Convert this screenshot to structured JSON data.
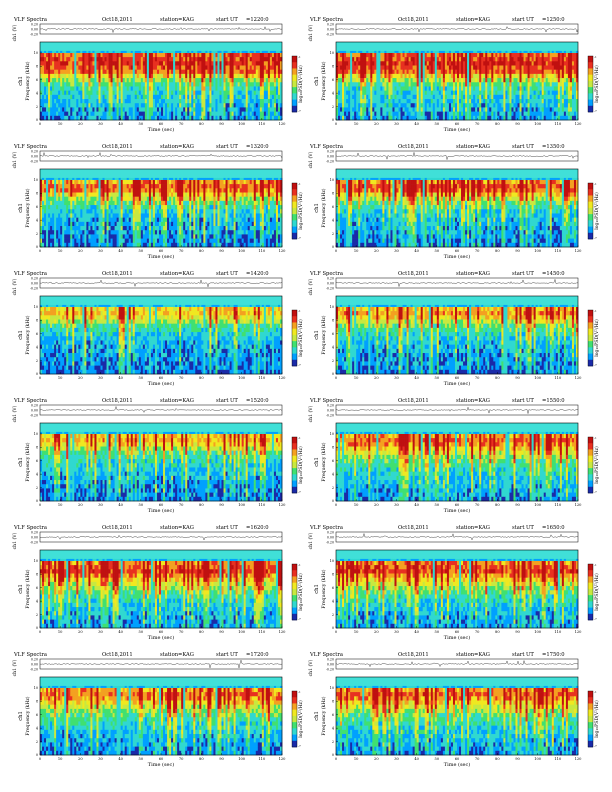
{
  "page": {
    "columns": 2
  },
  "labels": {
    "header_title": "VLF Spectra",
    "header_date": "Oct18,2011",
    "header_station": "station=KAG",
    "header_start": "start  UT",
    "x_axis_label": "Time  (sec)",
    "ch1_label": "ch1 (V)",
    "freq_label": "ch1\nFrequency  (kHz)",
    "colorbar_label": "log₁₀PSD(V²/Hz)"
  },
  "axes": {
    "time_ticks": [
      0,
      10,
      20,
      30,
      40,
      50,
      60,
      70,
      80,
      90,
      100,
      110,
      120
    ],
    "time_range": [
      0,
      120
    ],
    "freq_ticks": [
      0,
      2,
      4,
      6,
      8,
      10
    ],
    "freq_range": [
      0,
      10
    ],
    "ch1_ticks": [
      "0.20",
      "0.00",
      "-0.20"
    ],
    "ch1_range": [
      -0.2,
      0.2
    ],
    "colorbar_ticks": [
      "-1",
      "-7"
    ]
  },
  "colors": {
    "spectrogram_scale": [
      "#1a2aa8",
      "#00a0ff",
      "#30d8d0",
      "#40e070",
      "#c8e840",
      "#f0e820",
      "#f4a020",
      "#e83020",
      "#c01010"
    ],
    "background_low": "#40e0d8",
    "ink": "#000000"
  },
  "chart_data": [
    {
      "type": "heatmap",
      "title": "VLF Spectra",
      "start_ut": "=1220:0",
      "intensity": [
        0.78,
        0.82,
        0.85,
        0.8,
        0.76,
        0.6,
        0.45,
        0.35,
        0.3,
        0.28,
        0.25,
        0.22,
        0.2,
        0.18,
        0.16,
        0.15
      ],
      "activity": 0.9
    },
    {
      "type": "heatmap",
      "title": "VLF Spectra",
      "start_ut": "=1250:0",
      "intensity": [
        0.78,
        0.82,
        0.86,
        0.82,
        0.78,
        0.62,
        0.48,
        0.36,
        0.3,
        0.26,
        0.24,
        0.22,
        0.2,
        0.18,
        0.16,
        0.15
      ],
      "activity": 0.9
    },
    {
      "type": "heatmap",
      "title": "VLF Spectra",
      "start_ut": "=1320:0",
      "intensity": [
        0.7,
        0.78,
        0.74,
        0.6,
        0.48,
        0.38,
        0.3,
        0.24,
        0.22,
        0.2,
        0.18,
        0.16,
        0.15,
        0.14,
        0.13,
        0.12
      ],
      "activity": 0.7
    },
    {
      "type": "heatmap",
      "title": "VLF Spectra",
      "start_ut": "=1350:0",
      "intensity": [
        0.72,
        0.8,
        0.76,
        0.62,
        0.5,
        0.38,
        0.3,
        0.25,
        0.22,
        0.2,
        0.18,
        0.16,
        0.15,
        0.14,
        0.13,
        0.12
      ],
      "activity": 0.75
    },
    {
      "type": "heatmap",
      "title": "VLF Spectra",
      "start_ut": "=1420:0",
      "intensity": [
        0.62,
        0.66,
        0.58,
        0.46,
        0.36,
        0.3,
        0.26,
        0.22,
        0.2,
        0.18,
        0.17,
        0.16,
        0.15,
        0.14,
        0.13,
        0.12
      ],
      "activity": 0.55
    },
    {
      "type": "heatmap",
      "title": "VLF Spectra",
      "start_ut": "=1450:0",
      "intensity": [
        0.66,
        0.72,
        0.64,
        0.52,
        0.42,
        0.34,
        0.28,
        0.24,
        0.22,
        0.2,
        0.18,
        0.16,
        0.15,
        0.14,
        0.13,
        0.12
      ],
      "activity": 0.6
    },
    {
      "type": "heatmap",
      "title": "VLF Spectra",
      "start_ut": "=1520:0",
      "intensity": [
        0.64,
        0.68,
        0.6,
        0.5,
        0.4,
        0.32,
        0.28,
        0.24,
        0.22,
        0.2,
        0.18,
        0.16,
        0.15,
        0.14,
        0.13,
        0.12
      ],
      "activity": 0.55
    },
    {
      "type": "heatmap",
      "title": "VLF Spectra",
      "start_ut": "=1550:0",
      "intensity": [
        0.72,
        0.78,
        0.74,
        0.64,
        0.54,
        0.46,
        0.4,
        0.34,
        0.3,
        0.26,
        0.24,
        0.22,
        0.2,
        0.18,
        0.16,
        0.15
      ],
      "activity": 0.75
    },
    {
      "type": "heatmap",
      "title": "VLF Spectra",
      "start_ut": "=1620:0",
      "intensity": [
        0.74,
        0.8,
        0.84,
        0.74,
        0.62,
        0.52,
        0.44,
        0.38,
        0.32,
        0.28,
        0.24,
        0.22,
        0.2,
        0.18,
        0.16,
        0.15
      ],
      "activity": 0.8
    },
    {
      "type": "heatmap",
      "title": "VLF Spectra",
      "start_ut": "=1650:0",
      "intensity": [
        0.74,
        0.8,
        0.82,
        0.72,
        0.62,
        0.52,
        0.44,
        0.38,
        0.32,
        0.28,
        0.24,
        0.22,
        0.2,
        0.18,
        0.16,
        0.15
      ],
      "activity": 0.8
    },
    {
      "type": "heatmap",
      "title": "VLF Spectra",
      "start_ut": "=1720:0",
      "intensity": [
        0.7,
        0.76,
        0.72,
        0.62,
        0.52,
        0.44,
        0.38,
        0.32,
        0.28,
        0.25,
        0.22,
        0.2,
        0.18,
        0.16,
        0.15,
        0.14
      ],
      "activity": 0.7
    },
    {
      "type": "heatmap",
      "title": "VLF Spectra",
      "start_ut": "=1750:0",
      "intensity": [
        0.72,
        0.78,
        0.74,
        0.64,
        0.54,
        0.46,
        0.4,
        0.34,
        0.3,
        0.26,
        0.24,
        0.22,
        0.2,
        0.18,
        0.16,
        0.15
      ],
      "activity": 0.75
    }
  ]
}
